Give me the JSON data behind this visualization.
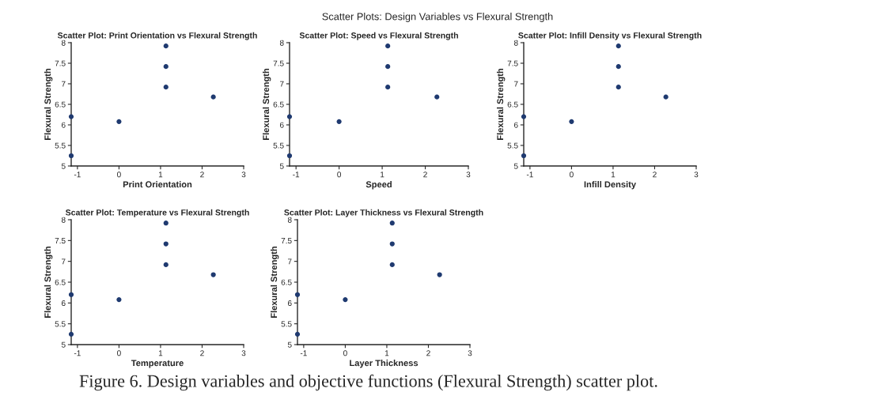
{
  "chart_data": [
    {
      "type": "scatter",
      "title": "Scatter Plot: Print Orientation vs Flexural Strength",
      "xlabel": "Print Orientation",
      "ylabel": "Flexural Strength",
      "x": [
        -1.15,
        -1.15,
        0,
        1.13,
        1.13,
        1.13,
        2.27
      ],
      "values": [
        5.25,
        6.2,
        6.08,
        6.92,
        7.42,
        7.92,
        6.68
      ],
      "color": "#1f3a70",
      "marker": "circle",
      "xlim": [
        -1.15,
        3
      ],
      "xticks": [
        -1,
        0,
        1,
        2,
        3
      ],
      "ylim": [
        5,
        8
      ],
      "yticks": [
        5,
        5.5,
        6,
        6.5,
        7,
        7.5,
        8
      ],
      "grid": false
    },
    {
      "type": "scatter",
      "title": "Scatter Plot: Speed vs Flexural Strength",
      "xlabel": "Speed",
      "ylabel": "Flexural Strength",
      "x": [
        -1.15,
        -1.15,
        0,
        1.13,
        1.13,
        1.13,
        2.27
      ],
      "values": [
        5.25,
        6.2,
        6.08,
        6.92,
        7.42,
        7.92,
        6.68
      ],
      "color": "#1f3a70",
      "marker": "circle",
      "xlim": [
        -1.15,
        3
      ],
      "xticks": [
        -1,
        0,
        1,
        2,
        3
      ],
      "ylim": [
        5,
        8
      ],
      "yticks": [
        5,
        5.5,
        6,
        6.5,
        7,
        7.5,
        8
      ],
      "grid": false
    },
    {
      "type": "scatter",
      "title": "Scatter Plot: Infill Density vs Flexural Strength",
      "xlabel": "Infill Density",
      "ylabel": "Flexural Strength",
      "x": [
        -1.15,
        -1.15,
        0,
        1.13,
        1.13,
        1.13,
        2.27
      ],
      "values": [
        5.25,
        6.2,
        6.08,
        6.92,
        7.42,
        7.92,
        6.68
      ],
      "color": "#1f3a70",
      "marker": "circle",
      "xlim": [
        -1.15,
        3
      ],
      "xticks": [
        -1,
        0,
        1,
        2,
        3
      ],
      "ylim": [
        5,
        8
      ],
      "yticks": [
        5,
        5.5,
        6,
        6.5,
        7,
        7.5,
        8
      ],
      "grid": false
    },
    {
      "type": "scatter",
      "title": "Scatter Plot: Temperature vs Flexural Strength",
      "xlabel": "Temperature",
      "ylabel": "Flexural Strength",
      "x": [
        -1.15,
        -1.15,
        0,
        1.13,
        1.13,
        1.13,
        2.27
      ],
      "values": [
        5.25,
        6.2,
        6.08,
        6.92,
        7.42,
        7.92,
        6.68
      ],
      "color": "#1f3a70",
      "marker": "circle",
      "xlim": [
        -1.15,
        3
      ],
      "xticks": [
        -1,
        0,
        1,
        2,
        3
      ],
      "ylim": [
        5,
        8
      ],
      "yticks": [
        5,
        5.5,
        6,
        6.5,
        7,
        7.5,
        8
      ],
      "grid": false
    },
    {
      "type": "scatter",
      "title": "Scatter Plot: Layer Thickness vs Flexural Strength",
      "xlabel": "Layer Thickness",
      "ylabel": "Flexural Strength",
      "x": [
        -1.15,
        -1.15,
        0,
        1.13,
        1.13,
        1.13,
        2.27
      ],
      "values": [
        5.25,
        6.2,
        6.08,
        6.92,
        7.42,
        7.92,
        6.68
      ],
      "color": "#1f3a70",
      "marker": "circle",
      "xlim": [
        -1.15,
        3
      ],
      "xticks": [
        -1,
        0,
        1,
        2,
        3
      ],
      "ylim": [
        5,
        8
      ],
      "yticks": [
        5,
        5.5,
        6,
        6.5,
        7,
        7.5,
        8
      ],
      "grid": false
    },
    {
      "type": "other",
      "title": "Scatter Plots: Design Variables vs Flexural Strength",
      "annotations": [
        "Figure 6. Design variables and objective functions (Flexural Strength) scatter plot."
      ]
    }
  ]
}
